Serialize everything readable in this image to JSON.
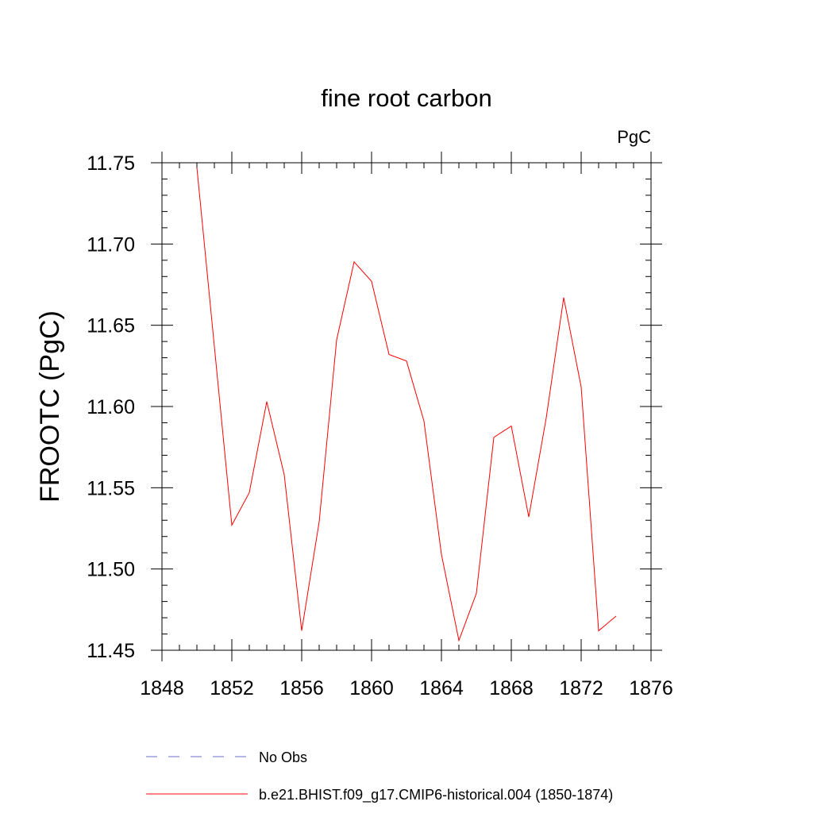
{
  "chart_data": {
    "type": "line",
    "title": "fine root carbon",
    "units": "PgC",
    "ylabel": "FROOTC  (PgC)",
    "xlabel": "",
    "xlim": [
      1848,
      1876
    ],
    "ylim": [
      11.45,
      11.75
    ],
    "x_ticks": [
      "1848",
      "1852",
      "1856",
      "1860",
      "1864",
      "1868",
      "1872",
      "1876"
    ],
    "y_ticks": [
      "11.45",
      "11.50",
      "11.55",
      "11.60",
      "11.65",
      "11.70",
      "11.75"
    ],
    "grid": false,
    "series": [
      {
        "name": "b.e21.BHIST.f09_g17.CMIP6-historical.004 (1850-1874)",
        "color": "#ff0000",
        "x": [
          1850,
          1851,
          1852,
          1853,
          1854,
          1855,
          1856,
          1857,
          1858,
          1859,
          1860,
          1861,
          1862,
          1863,
          1864,
          1865,
          1866,
          1867,
          1868,
          1869,
          1870,
          1871,
          1872,
          1873,
          1874
        ],
        "y": [
          11.747,
          11.637,
          11.527,
          11.547,
          11.603,
          11.558,
          11.462,
          11.529,
          11.641,
          11.689,
          11.677,
          11.632,
          11.628,
          11.591,
          11.509,
          11.456,
          11.485,
          11.581,
          11.588,
          11.532,
          11.593,
          11.667,
          11.612,
          11.462,
          11.471
        ]
      }
    ],
    "legend": {
      "placement": "bottom",
      "entries": [
        {
          "label": "No Obs",
          "style": "dashed",
          "color": "#6b6bd6"
        },
        {
          "label": "b.e21.BHIST.f09_g17.CMIP6-historical.004 (1850-1874)",
          "style": "solid",
          "color": "#ff0000"
        }
      ]
    }
  }
}
